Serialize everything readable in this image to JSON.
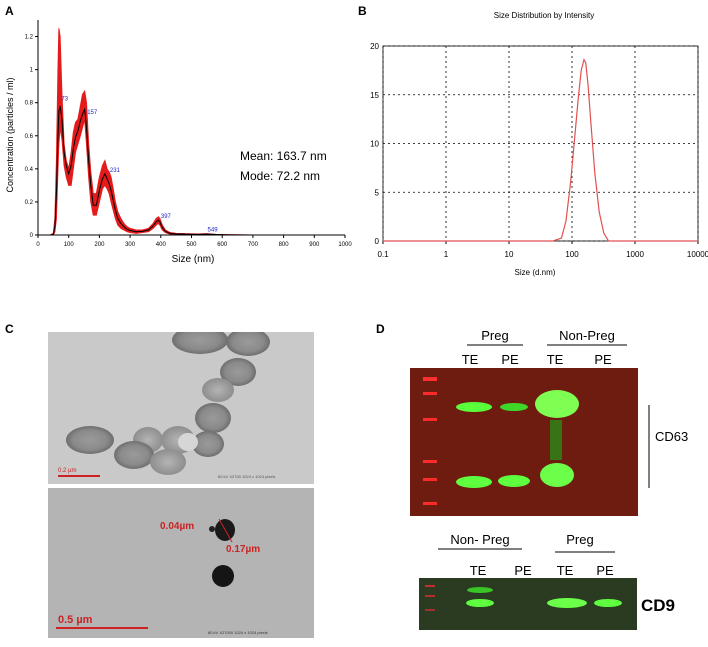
{
  "panels": {
    "A": {
      "letter": "A"
    },
    "B": {
      "letter": "B"
    },
    "C": {
      "letter": "C"
    },
    "D": {
      "letter": "D"
    }
  },
  "chart_data": [
    {
      "type": "line",
      "panel": "A",
      "title": "",
      "xlabel": "Size (nm)",
      "ylabel": "Concentration (particles / ml)",
      "xlim": [
        0,
        1000
      ],
      "ylim": [
        0,
        1.3
      ],
      "xticks": [
        0,
        100,
        200,
        300,
        400,
        500,
        600,
        700,
        800,
        900,
        1000
      ],
      "yticks": [
        0,
        0.2,
        0.4,
        0.6,
        0.8,
        1.0,
        1.2
      ],
      "ytick_labels": [
        "0",
        "0.2",
        "0.4",
        "0.6",
        "0.8",
        "1",
        "1.2"
      ],
      "series": [
        {
          "x": [
            0,
            40,
            50,
            55,
            60,
            65,
            68,
            72,
            78,
            85,
            92,
            100,
            108,
            115,
            122,
            130,
            138,
            145,
            152,
            158,
            165,
            172,
            180,
            190,
            200,
            210,
            218,
            225,
            232,
            238,
            245,
            252,
            260,
            270,
            280,
            290,
            300,
            320,
            340,
            360,
            375,
            385,
            392,
            397,
            405,
            415,
            430,
            450,
            480,
            520,
            549,
            580,
            620,
            700,
            800,
            900,
            1000
          ],
          "upper": [
            0,
            0,
            0.01,
            0.1,
            0.45,
            1.0,
            1.25,
            1.2,
            0.85,
            0.55,
            0.45,
            0.4,
            0.5,
            0.62,
            0.68,
            0.7,
            0.78,
            0.85,
            0.87,
            0.8,
            0.55,
            0.38,
            0.25,
            0.25,
            0.35,
            0.42,
            0.45,
            0.4,
            0.38,
            0.35,
            0.28,
            0.2,
            0.14,
            0.1,
            0.07,
            0.05,
            0.04,
            0.03,
            0.03,
            0.04,
            0.07,
            0.1,
            0.11,
            0.1,
            0.06,
            0.03,
            0.015,
            0.01,
            0.008,
            0.006,
            0.008,
            0.004,
            0.002,
            0,
            0,
            0,
            0
          ],
          "lower": [
            0,
            0,
            0,
            0.02,
            0.1,
            0.4,
            0.55,
            0.65,
            0.58,
            0.42,
            0.35,
            0.3,
            0.3,
            0.4,
            0.5,
            0.55,
            0.6,
            0.65,
            0.7,
            0.55,
            0.35,
            0.2,
            0.12,
            0.12,
            0.2,
            0.28,
            0.3,
            0.28,
            0.25,
            0.2,
            0.15,
            0.1,
            0.06,
            0.04,
            0.03,
            0.02,
            0.015,
            0.01,
            0.015,
            0.02,
            0.04,
            0.06,
            0.07,
            0.06,
            0.03,
            0.015,
            0.005,
            0.004,
            0.003,
            0.002,
            0.003,
            0.001,
            0,
            0,
            0,
            0,
            0
          ],
          "mean": [
            0,
            0,
            0.005,
            0.05,
            0.25,
            0.6,
            0.75,
            0.78,
            0.7,
            0.5,
            0.42,
            0.37,
            0.42,
            0.52,
            0.59,
            0.63,
            0.69,
            0.73,
            0.76,
            0.65,
            0.45,
            0.3,
            0.18,
            0.18,
            0.27,
            0.34,
            0.37,
            0.34,
            0.31,
            0.27,
            0.21,
            0.15,
            0.1,
            0.07,
            0.05,
            0.035,
            0.027,
            0.02,
            0.022,
            0.03,
            0.055,
            0.08,
            0.09,
            0.08,
            0.045,
            0.022,
            0.01,
            0.007,
            0.005,
            0.004,
            0.005,
            0.003,
            0.001,
            0,
            0,
            0,
            0
          ],
          "color": "#e51b1b",
          "mean_color": "#000000"
        }
      ],
      "peak_labels": [
        {
          "x": 73,
          "y": 0.8,
          "label": "73"
        },
        {
          "x": 157,
          "y": 0.72,
          "label": "157"
        },
        {
          "x": 231,
          "y": 0.37,
          "label": "231"
        },
        {
          "x": 397,
          "y": 0.09,
          "label": "397"
        },
        {
          "x": 549,
          "y": 0.01,
          "label": "549"
        }
      ],
      "annotations": [
        "Mean: 163.7 nm",
        "Mode: 72.2 nm"
      ],
      "label_color": "#2222cc"
    },
    {
      "type": "line",
      "panel": "B",
      "title": "Size Distribution by Intensity",
      "xlabel": "Size (d.nm)",
      "ylabel": "",
      "xscale": "log",
      "xlim": [
        0.1,
        10000
      ],
      "ylim": [
        0,
        20
      ],
      "xticks": [
        0.1,
        1,
        10,
        100,
        1000,
        10000
      ],
      "xtick_labels": [
        "0.1",
        "1",
        "10",
        "100",
        "1000",
        "10000"
      ],
      "yticks": [
        0,
        5,
        10,
        15,
        20
      ],
      "grid": true,
      "series": [
        {
          "x": [
            0.1,
            50,
            68,
            80,
            95,
            110,
            125,
            140,
            155,
            165,
            180,
            200,
            230,
            270,
            320,
            380,
            10000
          ],
          "y": [
            0,
            0,
            0.3,
            2,
            6,
            10.5,
            14.5,
            17.5,
            18.6,
            18.3,
            16,
            12,
            7,
            3,
            0.8,
            0,
            0
          ],
          "color": "#e05050"
        }
      ]
    }
  ],
  "tem": {
    "top_scale_label": "0.2 µm",
    "bottom_scale_label": "0.5 µm",
    "annot_1": "0.04µm",
    "annot_2": "0.17µm",
    "top_caption": "80 kV  X2700  1024 x 1024 pixels",
    "bottom_caption": "80 kV  X27000  1024 x 1024 pixels"
  },
  "blots": {
    "top_groups": [
      "Preg",
      "Non-Preg"
    ],
    "top_lanes": [
      "TE",
      "PE",
      "TE",
      "PE"
    ],
    "top_marker": "CD63",
    "bottom_groups": [
      "Non- Preg",
      "Preg"
    ],
    "bottom_lanes": [
      "TE",
      "PE",
      "TE",
      "PE"
    ],
    "bottom_marker": "CD9"
  }
}
